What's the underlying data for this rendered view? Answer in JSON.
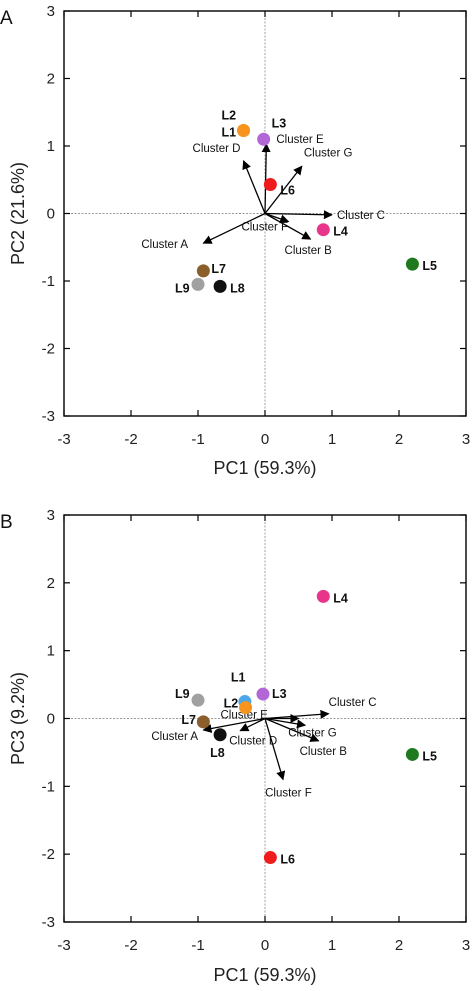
{
  "chart_data": [
    {
      "panel": "A",
      "type": "scatter",
      "xlabel": "PC1 (59.3%)",
      "ylabel": "PC2 (21.6%)",
      "xlim": [
        -3,
        3
      ],
      "ylim": [
        -3,
        3
      ],
      "xticks": [
        "-3",
        "-2",
        "-1",
        "0",
        "1",
        "2",
        "3"
      ],
      "yticks": [
        "-3",
        "-2",
        "-1",
        "0",
        "1",
        "2",
        "3"
      ],
      "grid": false,
      "points": [
        {
          "name": "L1",
          "x": -0.32,
          "y": 1.23,
          "color": "#f7941d"
        },
        {
          "name": "L2",
          "x": -0.32,
          "y": 1.23,
          "color": "#f7941d"
        },
        {
          "name": "L3",
          "x": -0.02,
          "y": 1.1,
          "color": "#b366d6"
        },
        {
          "name": "L4",
          "x": 0.87,
          "y": -0.24,
          "color": "#e8348a"
        },
        {
          "name": "L5",
          "x": 2.2,
          "y": -0.75,
          "color": "#1f7a1f"
        },
        {
          "name": "L6",
          "x": 0.08,
          "y": 0.43,
          "color": "#ee1c1c"
        },
        {
          "name": "L7",
          "x": -0.92,
          "y": -0.85,
          "color": "#8b5e2b"
        },
        {
          "name": "L8",
          "x": -0.67,
          "y": -1.08,
          "color": "#111111"
        },
        {
          "name": "L9",
          "x": -1.0,
          "y": -1.05,
          "color": "#a0a0a0"
        }
      ],
      "loadings": [
        {
          "name": "Cluster A",
          "x": -0.92,
          "y": -0.44
        },
        {
          "name": "Cluster B",
          "x": 0.68,
          "y": -0.38
        },
        {
          "name": "Cluster C",
          "x": 1.0,
          "y": -0.02
        },
        {
          "name": "Cluster D",
          "x": -0.32,
          "y": 0.78
        },
        {
          "name": "Cluster E",
          "x": 0.02,
          "y": 1.03
        },
        {
          "name": "Cluster F",
          "x": 0.35,
          "y": -0.12
        },
        {
          "name": "Cluster G",
          "x": 0.55,
          "y": 0.7
        }
      ]
    },
    {
      "panel": "B",
      "type": "scatter",
      "xlabel": "PC1 (59.3%)",
      "ylabel": "PC3 (9.2%)",
      "xlim": [
        -3,
        3
      ],
      "ylim": [
        -3,
        3
      ],
      "xticks": [
        "-3",
        "-2",
        "-1",
        "0",
        "1",
        "2",
        "3"
      ],
      "yticks": [
        "-3",
        "-2",
        "-1",
        "0",
        "1",
        "2",
        "3"
      ],
      "grid": false,
      "points": [
        {
          "name": "L1",
          "x": -0.3,
          "y": 0.25,
          "color": "#4da6e8"
        },
        {
          "name": "L2",
          "x": -0.29,
          "y": 0.16,
          "color": "#f7941d"
        },
        {
          "name": "L3",
          "x": -0.03,
          "y": 0.36,
          "color": "#b366d6"
        },
        {
          "name": "L4",
          "x": 0.87,
          "y": 1.8,
          "color": "#e8348a"
        },
        {
          "name": "L5",
          "x": 2.2,
          "y": -0.53,
          "color": "#1f7a1f"
        },
        {
          "name": "L6",
          "x": 0.08,
          "y": -2.05,
          "color": "#ee1c1c"
        },
        {
          "name": "L7",
          "x": -0.92,
          "y": -0.05,
          "color": "#8b5e2b"
        },
        {
          "name": "L8",
          "x": -0.67,
          "y": -0.24,
          "color": "#111111"
        },
        {
          "name": "L9",
          "x": -1.0,
          "y": 0.27,
          "color": "#a0a0a0"
        }
      ],
      "loadings": [
        {
          "name": "Cluster A",
          "x": -0.92,
          "y": -0.17
        },
        {
          "name": "Cluster B",
          "x": 0.8,
          "y": -0.33
        },
        {
          "name": "Cluster C",
          "x": 0.95,
          "y": 0.07
        },
        {
          "name": "Cluster D",
          "x": -0.37,
          "y": -0.18
        },
        {
          "name": "Cluster E",
          "x": 0.5,
          "y": 0.0
        },
        {
          "name": "Cluster F",
          "x": 0.27,
          "y": -0.9
        },
        {
          "name": "Cluster G",
          "x": 0.6,
          "y": -0.1
        }
      ]
    }
  ]
}
